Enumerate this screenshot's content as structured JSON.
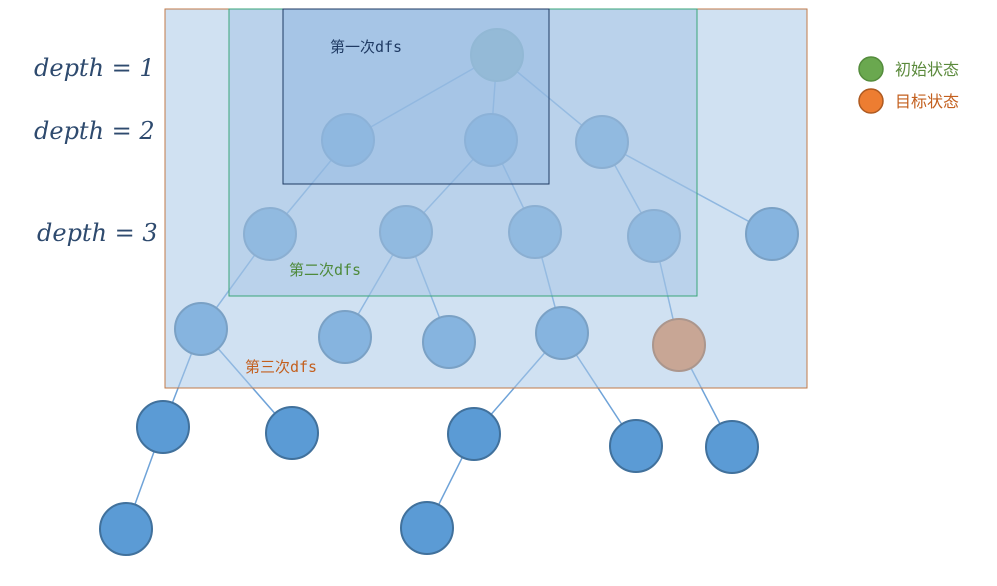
{
  "depth_labels": [
    "depth = 1",
    "depth = 2",
    "depth = 3"
  ],
  "regions": {
    "first": {
      "label": "第一次dfs",
      "color": "#1f3a63"
    },
    "second": {
      "label": "第二次dfs",
      "color": "#4e8a3b"
    },
    "third": {
      "label": "第三次dfs",
      "color": "#c35f1e"
    }
  },
  "legend": {
    "initial": {
      "label": "初始状态",
      "color": "#6aa84f",
      "text_color": "#5b8a3c"
    },
    "target": {
      "label": "目标状态",
      "color": "#ed7d31",
      "text_color": "#c35f1e"
    }
  },
  "colors": {
    "node_fill": "#5b9bd5",
    "node_stroke": "#41719c",
    "edge": "#5b9bd5"
  }
}
